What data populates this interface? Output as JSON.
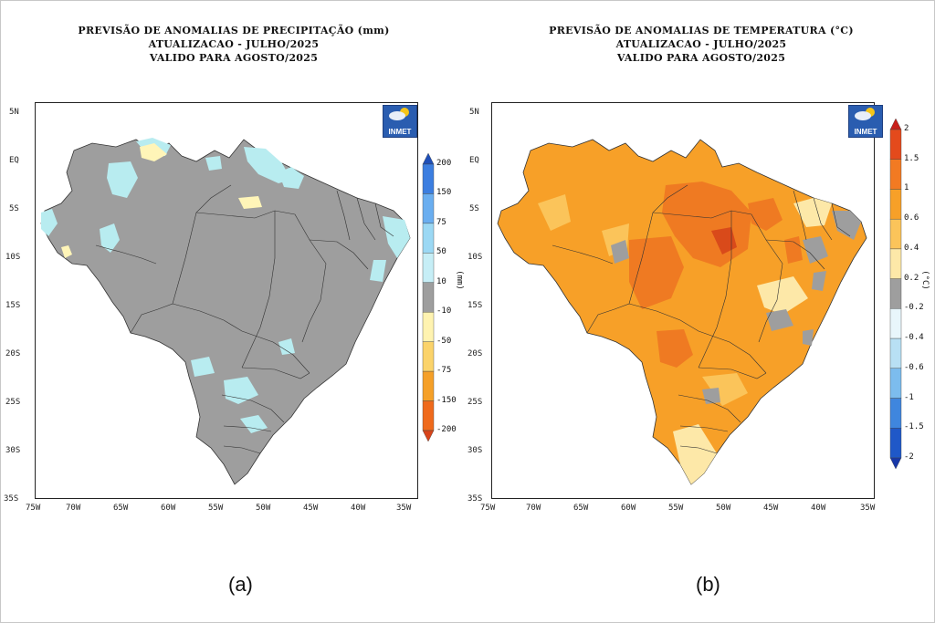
{
  "colors": {
    "gray": "#9e9e9e",
    "light_cyan": "#b8ecf0",
    "light_yellow": "#fff5b8",
    "temp_yellow": "#fde8a8",
    "temp_lightorange": "#fbc45a",
    "temp_orange": "#f7a028",
    "temp_darkorange": "#ef7a22",
    "temp_red": "#d94a1a"
  },
  "panel_a": {
    "title": [
      "PREVISÃO DE ANOMALIAS DE PRECIPITAÇÃO (mm)",
      "ATUALIZACAO - JULHO/2025",
      "VALIDO PARA AGOSTO/2025"
    ],
    "logo": "INMET",
    "unit": "(mm)",
    "legend_ticks": [
      "200",
      "150",
      "75",
      "50",
      "10",
      "-10",
      "-50",
      "-75",
      "-150",
      "-200"
    ],
    "legend_colors": [
      "#1f4fb8",
      "#3c7ee0",
      "#6aaef0",
      "#9bd8f4",
      "#c6eef6",
      "#9e9e9e",
      "#fff3b0",
      "#fbd36a",
      "#f5a028",
      "#ef6a1c",
      "#d8441a"
    ],
    "caption": "(a)"
  },
  "panel_b": {
    "title": [
      "PREVISÃO DE ANOMALIAS DE TEMPERATURA (°C)",
      "ATUALIZACAO - JULHO/2025",
      "VALIDO PARA AGOSTO/2025"
    ],
    "logo": "INMET",
    "unit": "(°C)",
    "legend_ticks": [
      "2",
      "1.5",
      "1",
      "0.6",
      "0.4",
      "0.2",
      "-0.2",
      "-0.4",
      "-0.6",
      "-1",
      "-1.5",
      "-2"
    ],
    "legend_colors": [
      "#c8201a",
      "#e44a1c",
      "#f27a22",
      "#f7a028",
      "#fbc45a",
      "#fde8a8",
      "#9e9e9e",
      "#e8f6fb",
      "#b8e0f4",
      "#7cbcee",
      "#3f86de",
      "#1f58c8",
      "#1838a8"
    ],
    "caption": "(b)"
  },
  "axes": {
    "lat_labels": [
      "5N",
      "EQ",
      "5S",
      "10S",
      "15S",
      "20S",
      "25S",
      "30S",
      "35S"
    ],
    "lon_labels": [
      "75W",
      "70W",
      "65W",
      "60W",
      "55W",
      "50W",
      "45W",
      "40W",
      "35W"
    ]
  }
}
